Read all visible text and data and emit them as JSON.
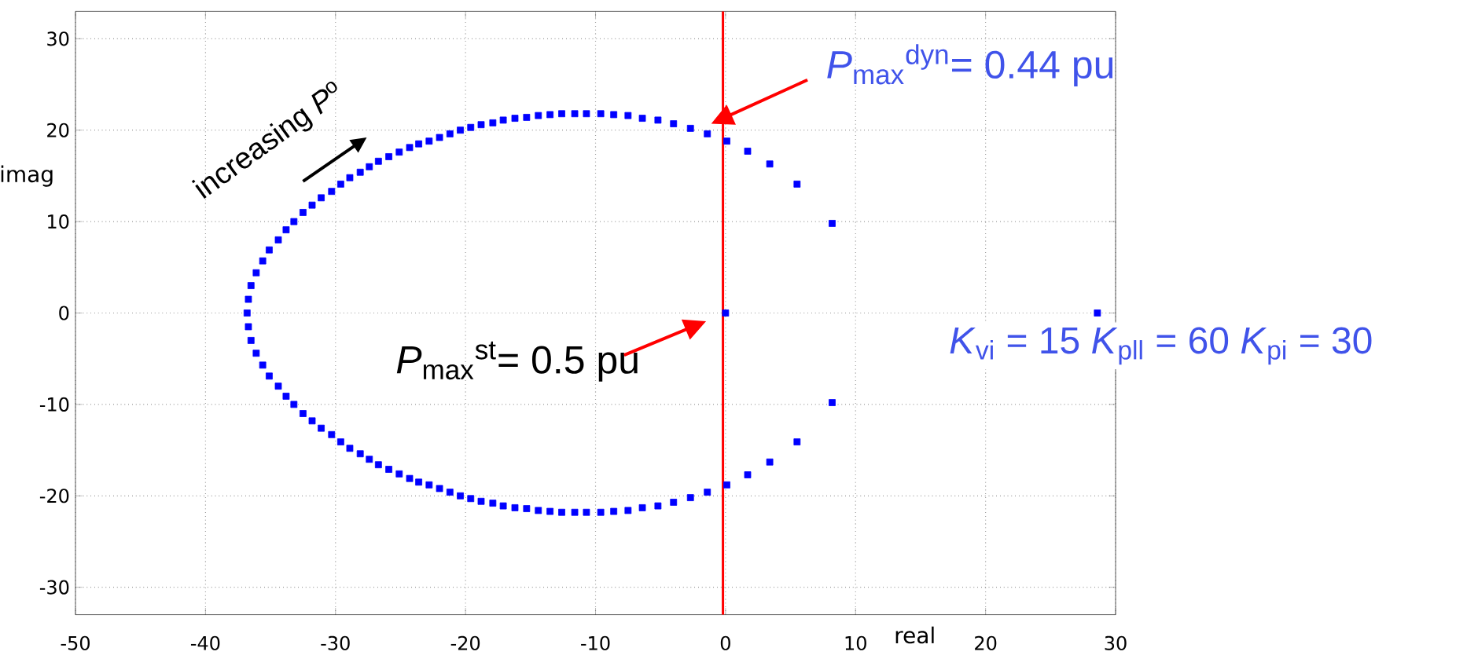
{
  "chart_data": {
    "type": "scatter",
    "xlabel": "real",
    "ylabel": "imag",
    "x": [
      -36.8,
      -36.7,
      -36.5,
      -36.1,
      -35.6,
      -35.1,
      -34.4,
      -33.8,
      -33.2,
      -32.5,
      -31.8,
      -31.1,
      -30.3,
      -29.6,
      -28.9,
      -28.1,
      -27.4,
      -26.7,
      -25.9,
      -25.1,
      -24.3,
      -23.6,
      -22.8,
      -22.0,
      -21.2,
      -20.4,
      -19.6,
      -18.8,
      -17.9,
      -17.1,
      -16.2,
      -15.3,
      -14.4,
      -13.5,
      -12.6,
      -11.6,
      -10.7,
      -9.6,
      -8.6,
      -7.5,
      -6.4,
      -5.2,
      -4.0,
      -2.7,
      -1.4,
      0.1,
      1.7,
      3.4,
      5.5,
      8.2,
      -36.7,
      -36.5,
      -36.1,
      -35.6,
      -35.1,
      -34.4,
      -33.8,
      -33.2,
      -32.5,
      -31.8,
      -31.1,
      -30.3,
      -29.6,
      -28.9,
      -28.1,
      -27.4,
      -26.7,
      -25.9,
      -25.1,
      -24.3,
      -23.6,
      -22.8,
      -22.0,
      -21.2,
      -20.4,
      -19.6,
      -18.8,
      -17.9,
      -17.1,
      -16.2,
      -15.3,
      -14.4,
      -13.5,
      -12.6,
      -11.6,
      -10.7,
      -9.6,
      -8.6,
      -7.5,
      -6.4,
      -5.2,
      -4.0,
      -2.7,
      -1.4,
      0.1,
      1.7,
      3.4,
      5.5,
      8.2,
      0.0,
      28.6
    ],
    "series": [
      {
        "color": "#0000ff",
        "values": [
          0.0,
          1.5,
          3.0,
          4.4,
          5.7,
          6.9,
          8.0,
          9.1,
          10.0,
          11.0,
          11.8,
          12.6,
          13.3,
          14.1,
          14.8,
          15.4,
          16.0,
          16.6,
          17.1,
          17.6,
          18.1,
          18.5,
          18.8,
          19.2,
          19.6,
          20.0,
          20.3,
          20.6,
          20.8,
          21.1,
          21.3,
          21.4,
          21.6,
          21.7,
          21.8,
          21.8,
          21.8,
          21.8,
          21.7,
          21.6,
          21.3,
          21.1,
          20.7,
          20.2,
          19.6,
          18.8,
          17.7,
          16.3,
          14.1,
          9.8,
          -1.5,
          -3.0,
          -4.4,
          -5.7,
          -6.9,
          -8.0,
          -9.1,
          -10.0,
          -11.0,
          -11.8,
          -12.6,
          -13.3,
          -14.1,
          -14.8,
          -15.4,
          -16.0,
          -16.6,
          -17.1,
          -17.6,
          -18.1,
          -18.5,
          -18.8,
          -19.2,
          -19.6,
          -20.0,
          -20.3,
          -20.6,
          -20.8,
          -21.1,
          -21.3,
          -21.4,
          -21.6,
          -21.7,
          -21.8,
          -21.8,
          -21.8,
          -21.8,
          -21.7,
          -21.6,
          -21.3,
          -21.1,
          -20.7,
          -20.2,
          -19.6,
          -18.8,
          -17.7,
          -16.3,
          -14.1,
          -9.8,
          0.0,
          0.0
        ]
      }
    ],
    "marker": "square",
    "xlim": [
      -50,
      30
    ],
    "xticks": [
      -50,
      -40,
      -30,
      -20,
      -10,
      0,
      10,
      20,
      30
    ],
    "ylim": [
      -33,
      33
    ],
    "yticks": [
      -30,
      -20,
      -10,
      0,
      10,
      20,
      30
    ],
    "grid": true,
    "ref_lines": [
      {
        "axis": "x",
        "value": -0.2,
        "color": "#ff0000"
      }
    ],
    "annotations": [
      {
        "text": "increasing *P*$^{o}$"
      },
      {
        "text": "*P*$_{max}$$^{dyn}$= 0.44 pu",
        "x": -0.2,
        "y": 20.7
      },
      {
        "text": "*P*$_{max}$$^{st}$= 0.5 pu",
        "x": 0.0,
        "y": 0.0
      },
      {
        "text": "*K*$_{vi}$ = 15   *K*$_{pll}$ = 60    *K*$_{pi}$ = 30"
      }
    ]
  }
}
